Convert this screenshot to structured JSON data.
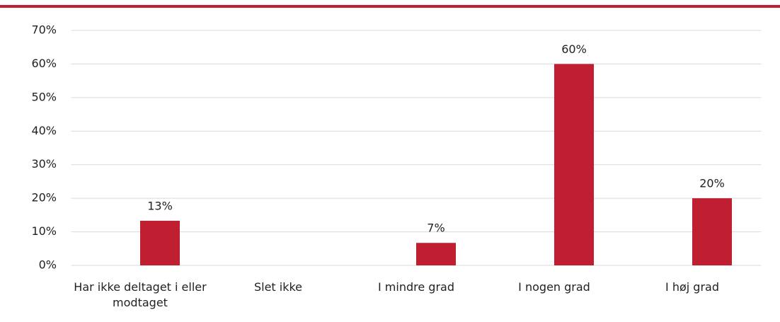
{
  "chart_data": {
    "type": "bar",
    "categories": [
      "Har ikke deltaget i eller modtaget",
      "Slet ikke",
      "I mindre grad",
      "I nogen grad",
      "I høj grad"
    ],
    "values": [
      13.3,
      0,
      6.7,
      60,
      20
    ],
    "value_labels": [
      "13%",
      null,
      "7%",
      "60%",
      "20%"
    ],
    "color": "#c01f32",
    "ylim": [
      0,
      70
    ],
    "yticks": [
      {
        "value": 0,
        "label": "0%"
      },
      {
        "value": 10,
        "label": "10%"
      },
      {
        "value": 20,
        "label": "20%"
      },
      {
        "value": 30,
        "label": "30%"
      },
      {
        "value": 40,
        "label": "40%"
      },
      {
        "value": 50,
        "label": "50%"
      },
      {
        "value": 60,
        "label": "60%"
      },
      {
        "value": 70,
        "label": "70%"
      }
    ],
    "grid": true
  }
}
